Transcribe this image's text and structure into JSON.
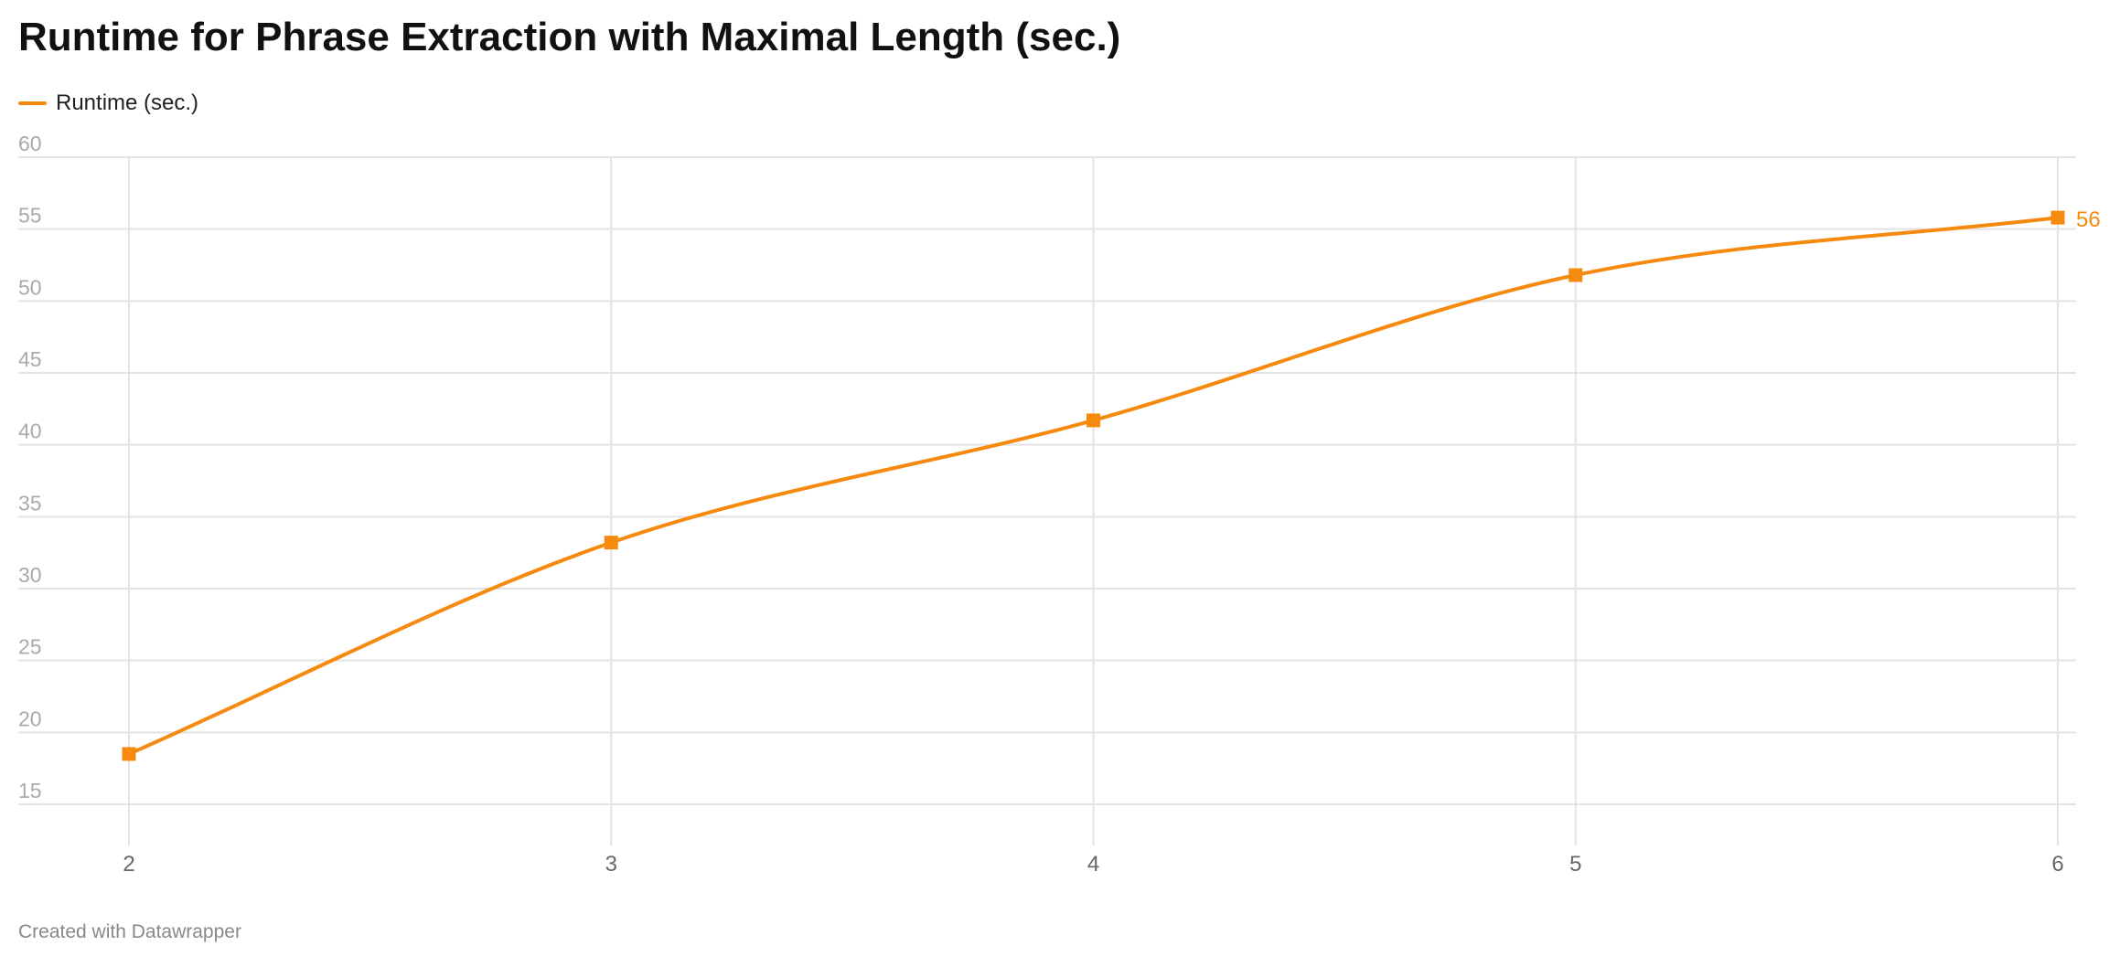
{
  "chart": {
    "title": "Runtime for Phrase Extraction with Maximal Length (sec.)",
    "footer": "Created with Datawrapper",
    "legend": {
      "label": "Runtime (sec.)"
    },
    "colors": {
      "series": "#f58a0f",
      "grid": "#e3e3e3",
      "tick_label": "#aaaaaa",
      "x_tick_label": "#666666"
    }
  },
  "chart_data": {
    "type": "line",
    "title": "Runtime for Phrase Extraction with Maximal Length (sec.)",
    "xlabel": "",
    "ylabel": "",
    "x": [
      2,
      3,
      4,
      5,
      6
    ],
    "series": [
      {
        "name": "Runtime (sec.)",
        "values": [
          18.5,
          33.2,
          41.7,
          51.8,
          55.8
        ]
      }
    ],
    "xlim": [
      2,
      6
    ],
    "ylim": [
      15,
      60
    ],
    "yticks": [
      15,
      20,
      25,
      30,
      35,
      40,
      45,
      50,
      55,
      60
    ],
    "xticks": [
      2,
      3,
      4,
      5,
      6
    ],
    "end_label": "56",
    "grid": true,
    "legend_position": "top-left",
    "marker": "square",
    "line_style": "smooth"
  }
}
